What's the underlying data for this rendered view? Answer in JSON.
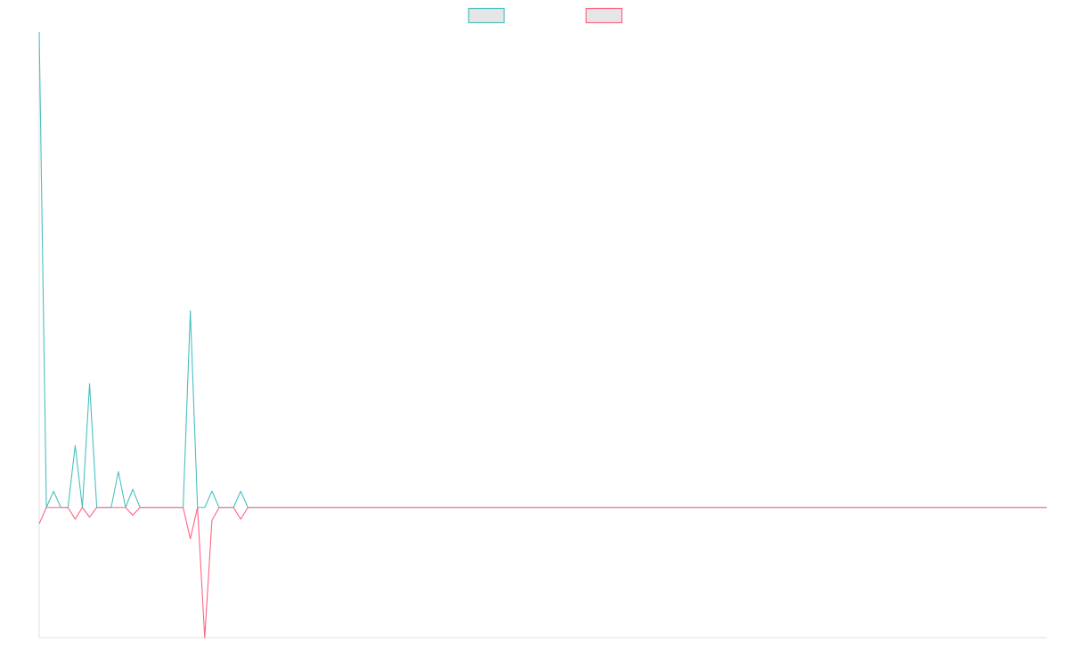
{
  "chart_data": {
    "type": "line",
    "title": "",
    "xlabel": "",
    "ylabel": "",
    "grid": false,
    "legend_position": "top-center",
    "x": [
      0,
      1,
      2,
      3,
      4,
      5,
      6,
      7,
      8,
      9,
      10,
      11,
      12,
      13,
      14,
      15,
      16,
      17,
      18,
      19,
      20,
      21,
      22,
      23,
      24,
      25,
      26,
      27,
      28,
      29,
      30,
      31,
      32,
      33,
      34,
      35,
      36,
      37,
      38,
      39,
      40,
      41,
      42,
      43,
      44,
      45,
      46,
      47,
      48,
      49,
      50,
      51,
      52,
      53,
      54,
      55,
      56,
      57,
      58,
      59,
      60,
      61,
      62,
      63,
      64,
      65,
      66,
      67,
      68,
      69,
      70,
      71,
      72,
      73,
      74,
      75,
      76,
      77,
      78,
      79,
      80,
      81,
      82,
      83,
      84,
      85,
      86,
      87,
      88,
      89,
      90,
      91,
      92,
      93,
      94,
      95,
      96,
      97,
      98,
      99,
      100,
      101,
      102,
      103,
      104,
      105,
      106,
      107,
      108,
      109,
      110,
      111,
      112,
      113,
      114,
      115,
      116,
      117,
      118,
      119,
      120,
      121,
      122,
      123,
      124,
      125,
      126,
      127,
      128,
      129,
      130,
      131,
      132,
      133,
      134,
      135,
      136,
      137,
      138,
      139,
      140
    ],
    "xlim": [
      0,
      140
    ],
    "ylim": [
      -20,
      73
    ],
    "series": [
      {
        "name": "",
        "color": "#4bc0c0",
        "fill": "#e6e6e6",
        "values": [
          73,
          0,
          2.5,
          0,
          0,
          9.5,
          0,
          19,
          0,
          0,
          0,
          5.5,
          0,
          2.8,
          0,
          0,
          0,
          0,
          0,
          0,
          0,
          30.2,
          0,
          0,
          2.5,
          0,
          0,
          0,
          2.5,
          0,
          0,
          0,
          0,
          0,
          0,
          0,
          0,
          0,
          0,
          0,
          0,
          0,
          0,
          0,
          0,
          0,
          0,
          0,
          0,
          0,
          0,
          0,
          0,
          0,
          0,
          0,
          0,
          0,
          0,
          0,
          0,
          0,
          0,
          0,
          0,
          0,
          0,
          0,
          0,
          0,
          0,
          0,
          0,
          0,
          0,
          0,
          0,
          0,
          0,
          0,
          0,
          0,
          0,
          0,
          0,
          0,
          0,
          0,
          0,
          0,
          0,
          0,
          0,
          0,
          0,
          0,
          0,
          0,
          0,
          0,
          0,
          0,
          0,
          0,
          0,
          0,
          0,
          0,
          0,
          0,
          0,
          0,
          0,
          0,
          0,
          0,
          0,
          0,
          0,
          0,
          0,
          0,
          0,
          0,
          0,
          0,
          0,
          0,
          0,
          0,
          0,
          0,
          0,
          0,
          0,
          0,
          0,
          0,
          0,
          0,
          0
        ]
      },
      {
        "name": "",
        "color": "#ff6384",
        "fill": "#e6e6e6",
        "values": [
          -2.5,
          0,
          0,
          0,
          0,
          -1.8,
          0,
          -1.5,
          0,
          0,
          0,
          0,
          0,
          -1.2,
          0,
          0,
          0,
          0,
          0,
          0,
          0,
          -4.8,
          0,
          -20,
          -2,
          0,
          0,
          0,
          -1.8,
          0,
          0,
          0,
          0,
          0,
          0,
          0,
          0,
          0,
          0,
          0,
          0,
          0,
          0,
          0,
          0,
          0,
          0,
          0,
          0,
          0,
          0,
          0,
          0,
          0,
          0,
          0,
          0,
          0,
          0,
          0,
          0,
          0,
          0,
          0,
          0,
          0,
          0,
          0,
          0,
          0,
          0,
          0,
          0,
          0,
          0,
          0,
          0,
          0,
          0,
          0,
          0,
          0,
          0,
          0,
          0,
          0,
          0,
          0,
          0,
          0,
          0,
          0,
          0,
          0,
          0,
          0,
          0,
          0,
          0,
          0,
          0,
          0,
          0,
          0,
          0,
          0,
          0,
          0,
          0,
          0,
          0,
          0,
          0,
          0,
          0,
          0,
          0,
          0,
          0,
          0,
          0,
          0,
          0,
          0,
          0,
          0,
          0,
          0,
          0,
          0,
          0,
          0,
          0,
          0,
          0,
          0,
          0,
          0,
          0,
          0,
          0
        ]
      }
    ]
  }
}
